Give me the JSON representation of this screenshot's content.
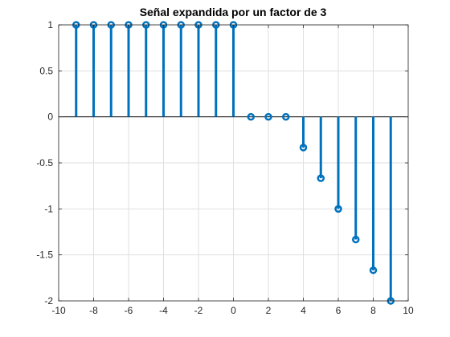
{
  "chart_data": {
    "type": "stem",
    "title": "Señal expandida por un factor de 3",
    "xlabel": "",
    "ylabel": "",
    "xlim": [
      -10,
      10
    ],
    "ylim": [
      -2,
      1
    ],
    "xticks": [
      -10,
      -8,
      -6,
      -4,
      -2,
      0,
      2,
      4,
      6,
      8,
      10
    ],
    "xtick_labels": [
      "-10",
      "-8",
      "-6",
      "-4",
      "-2",
      "0",
      "2",
      "4",
      "6",
      "8",
      "10"
    ],
    "yticks": [
      -2,
      -1.5,
      -1,
      -0.5,
      0,
      0.5,
      1
    ],
    "ytick_labels": [
      "-2",
      "-1.5",
      "-1",
      "-0.5",
      "0",
      "0.5",
      "1"
    ],
    "grid": true,
    "baseline": 0,
    "series": [
      {
        "x": [
          -9,
          -8,
          -7,
          -6,
          -5,
          -4,
          -3,
          -2,
          -1,
          0,
          1,
          2,
          3,
          4,
          5,
          6,
          7,
          8,
          9
        ],
        "y": [
          1,
          1,
          1,
          1,
          1,
          1,
          1,
          1,
          1,
          1,
          0,
          0,
          0,
          -0.333,
          -0.667,
          -1,
          -1.333,
          -1.667,
          -2
        ]
      }
    ],
    "colors": {
      "stem": "#0072BD",
      "grid": "#dfdfdf",
      "axis": "#262626",
      "baseline": "#000000"
    }
  }
}
